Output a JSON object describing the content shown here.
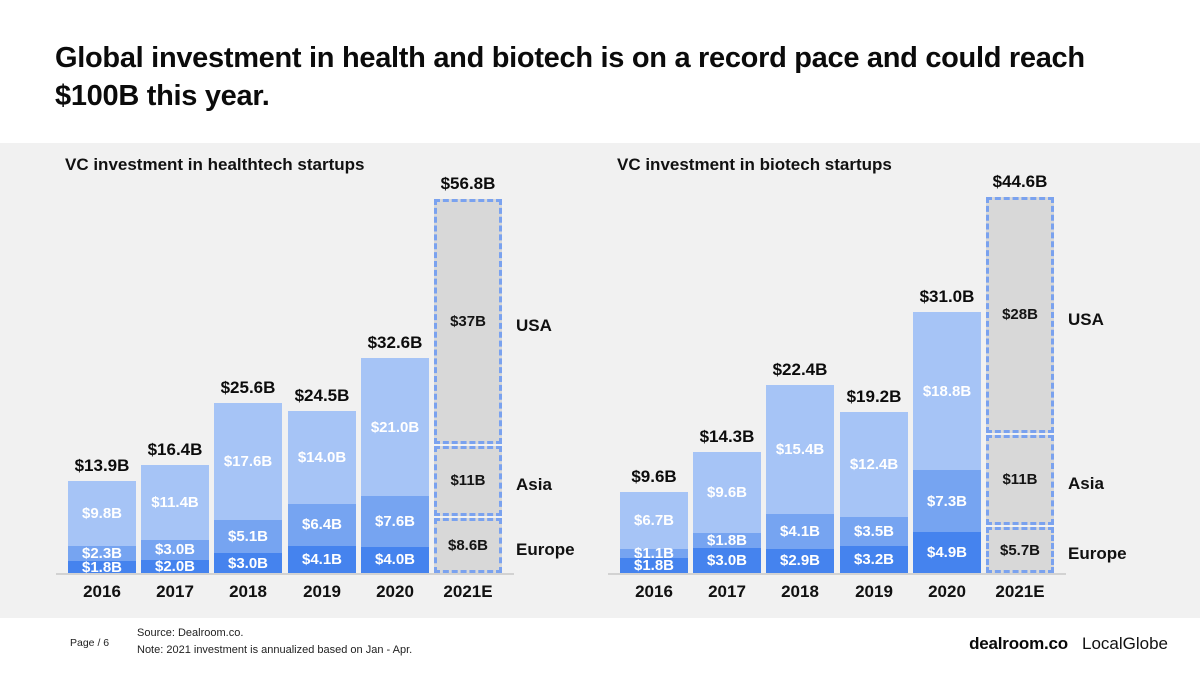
{
  "header": {
    "title": "Global investment in health and biotech is on a record pace and could reach $100B this year."
  },
  "colors": {
    "regions": {
      "USA": "#a6c4f6",
      "Asia": "#76a4f1",
      "Europe": "#4583ee"
    },
    "estimate_fill": "#d8d8d8",
    "estimate_dash": "#7aa2ef",
    "band_background": "#f1f1f1",
    "baseline": "#d2d2d2"
  },
  "chart_data": [
    {
      "type": "bar",
      "stacked": true,
      "title": "VC investment in healthtech startups",
      "categories": [
        "2016",
        "2017",
        "2018",
        "2019",
        "2020",
        "2021E"
      ],
      "estimate_category": "2021E",
      "legend_position": "right-of-estimate-bar",
      "grid": false,
      "ylim": [
        0,
        56.8
      ],
      "series": [
        {
          "name": "USA",
          "values": [
            9.8,
            11.4,
            17.6,
            14.0,
            21.0,
            37.0
          ],
          "labels": [
            "$9.8B",
            "$11.4B",
            "$17.6B",
            "$14.0B",
            "$21.0B",
            "$37B"
          ]
        },
        {
          "name": "Asia",
          "values": [
            2.3,
            3.0,
            5.1,
            6.4,
            7.6,
            11.0
          ],
          "labels": [
            "$2.3B",
            "$3.0B",
            "$5.1B",
            "$6.4B",
            "$7.6B",
            "$11B"
          ]
        },
        {
          "name": "Europe",
          "values": [
            1.8,
            2.0,
            3.0,
            4.1,
            4.0,
            8.6
          ],
          "labels": [
            "$1.8B",
            "$2.0B",
            "$3.0B",
            "$4.1B",
            "$4.0B",
            "$8.6B"
          ]
        }
      ],
      "totals": {
        "values": [
          13.9,
          16.4,
          25.6,
          24.5,
          32.6,
          56.8
        ],
        "labels": [
          "$13.9B",
          "$16.4B",
          "$25.6B",
          "$24.5B",
          "$32.6B",
          "$56.8B"
        ]
      }
    },
    {
      "type": "bar",
      "stacked": true,
      "title": "VC investment in biotech startups",
      "categories": [
        "2016",
        "2017",
        "2018",
        "2019",
        "2020",
        "2021E"
      ],
      "estimate_category": "2021E",
      "legend_position": "right-of-estimate-bar",
      "grid": false,
      "ylim": [
        0,
        44.6
      ],
      "series": [
        {
          "name": "USA",
          "values": [
            6.7,
            9.6,
            15.4,
            12.4,
            18.8,
            28.0
          ],
          "labels": [
            "$6.7B",
            "$9.6B",
            "$15.4B",
            "$12.4B",
            "$18.8B",
            "$28B"
          ]
        },
        {
          "name": "Asia",
          "values": [
            1.1,
            1.8,
            4.1,
            3.5,
            7.3,
            11.0
          ],
          "labels": [
            "$1.1B",
            "$1.8B",
            "$4.1B",
            "$3.5B",
            "$7.3B",
            "$11B"
          ]
        },
        {
          "name": "Europe",
          "values": [
            1.8,
            3.0,
            2.9,
            3.2,
            4.9,
            5.7
          ],
          "labels": [
            "$1.8B",
            "$3.0B",
            "$2.9B",
            "$3.2B",
            "$4.9B",
            "$5.7B"
          ]
        }
      ],
      "totals": {
        "values": [
          9.6,
          14.3,
          22.4,
          19.2,
          31.0,
          44.6
        ],
        "labels": [
          "$9.6B",
          "$14.3B",
          "$22.4B",
          "$19.2B",
          "$31.0B",
          "$44.6B"
        ]
      }
    }
  ],
  "footer": {
    "page": "Page / 6",
    "source": "Source: Dealroom.co.",
    "note": "Note: 2021 investment is annualized based on Jan - Apr.",
    "logo_dealroom": "dealroom.co",
    "logo_localglobe": "LocalGlobe"
  }
}
